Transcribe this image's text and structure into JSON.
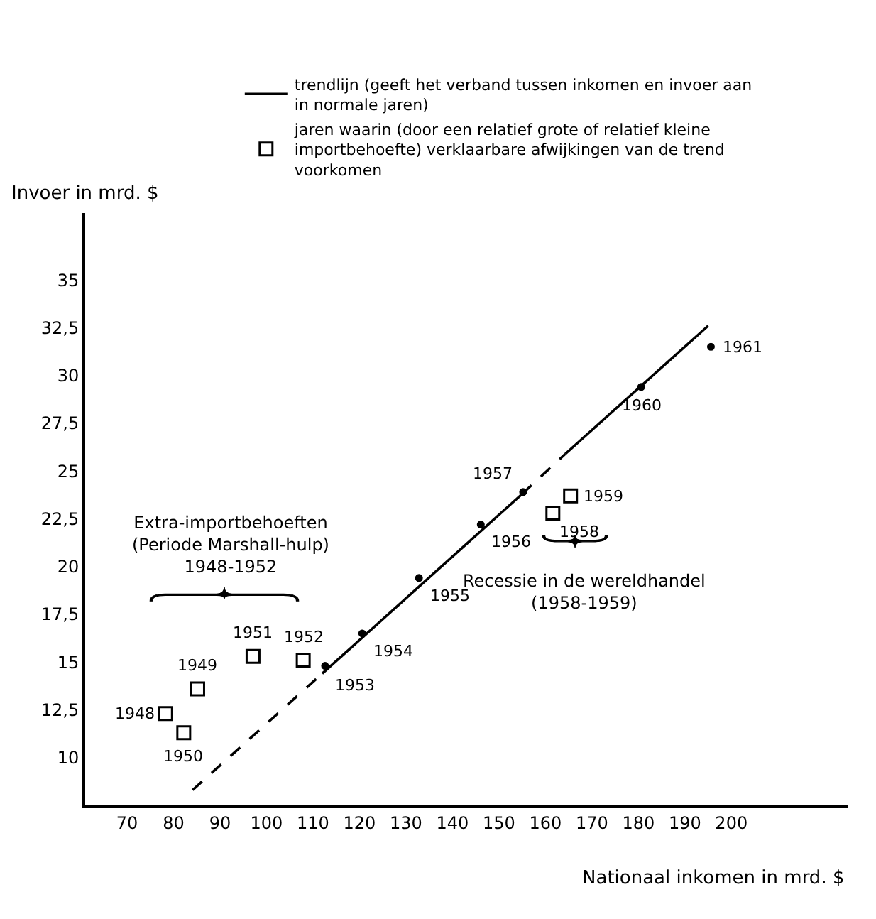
{
  "chart_data": {
    "type": "scatter",
    "xlabel": "Nationaal inkomen in mrd. $",
    "ylabel": "Invoer in mrd. $",
    "xlim": [
      61,
      225
    ],
    "ylim": [
      7.5,
      38.5
    ],
    "xticks": [
      70,
      80,
      90,
      100,
      110,
      120,
      130,
      140,
      150,
      160,
      170,
      180,
      190,
      200
    ],
    "yticks": [
      10,
      {
        "value": 12.5,
        "label": "12,5"
      },
      15,
      {
        "value": 17.5,
        "label": "17,5"
      },
      20,
      {
        "value": 22.5,
        "label": "22,5"
      },
      25,
      {
        "value": 27.5,
        "label": "27,5"
      },
      30,
      {
        "value": 32.5,
        "label": "32,5"
      },
      35
    ],
    "legend": "top",
    "series": [
      {
        "name": "trendlijn (geeft het verband tussen inkomen en invoer aan in normale jaren)",
        "type": "line",
        "color": "#000000",
        "line_style": "solid",
        "marker": "none",
        "x": [
          112,
          155
        ],
        "values": [
          14.4,
          23.8
        ]
      },
      {
        "type": "line",
        "color": "#000000",
        "line_style": "dashed",
        "marker": "none",
        "x": [
          84.1,
          112
        ],
        "values": [
          8.3,
          14.4
        ]
      },
      {
        "type": "line",
        "color": "#000000",
        "line_style": "dashed",
        "marker": "none",
        "x": [
          155,
          164.3
        ],
        "values": [
          23.8,
          25.9
        ]
      },
      {
        "type": "line",
        "color": "#000000",
        "line_style": "solid",
        "marker": "none",
        "x": [
          164.3,
          195
        ],
        "values": [
          25.9,
          32.6
        ]
      },
      {
        "name": "jaren waarin (door een relatief grote of relatief kleine importbehoefte) verklaarbare afwijkingen van de trend voorkomen",
        "color": "#000000",
        "marker": "square",
        "x": [
          78.3,
          85.2,
          82.2,
          97.1,
          107.9,
          161.6,
          165.4
        ],
        "values": [
          12.3,
          13.6,
          11.3,
          15.3,
          15.1,
          22.8,
          23.7
        ]
      },
      {
        "color": "#000000",
        "marker": "circle",
        "x": [
          112.6,
          120.6,
          132.8,
          146.1,
          155.2,
          180.6,
          195.6
        ],
        "values": [
          14.8,
          16.5,
          19.4,
          22.2,
          23.9,
          29.4,
          31.5
        ]
      }
    ],
    "annotations": [
      {
        "text": "1948",
        "x": 78.3,
        "y": 12.3
      },
      {
        "text": "1949",
        "x": 85.2,
        "y": 13.6
      },
      {
        "text": "1950",
        "x": 82.2,
        "y": 11.3
      },
      {
        "text": "1951",
        "x": 97.1,
        "y": 15.3
      },
      {
        "text": "1952",
        "x": 107.9,
        "y": 15.1
      },
      {
        "text": "1953",
        "x": 112.6,
        "y": 14.8
      },
      {
        "text": "1954",
        "x": 120.6,
        "y": 16.5
      },
      {
        "text": "1955",
        "x": 132.8,
        "y": 19.4
      },
      {
        "text": "1956",
        "x": 146.1,
        "y": 22.2
      },
      {
        "text": "1957",
        "x": 155.2,
        "y": 23.9
      },
      {
        "text": "1958",
        "x": 161.6,
        "y": 22.8
      },
      {
        "text": "1959",
        "x": 165.4,
        "y": 23.7
      },
      {
        "text": "1960",
        "x": 180.6,
        "y": 29.4
      },
      {
        "text": "1961",
        "x": 195.6,
        "y": 31.5
      },
      "Extra-importbehoeften\n(Periode Marshall-hulp)\n1948-1952",
      "Recessie in de wereldhandel\n(1958-1959)"
    ]
  }
}
